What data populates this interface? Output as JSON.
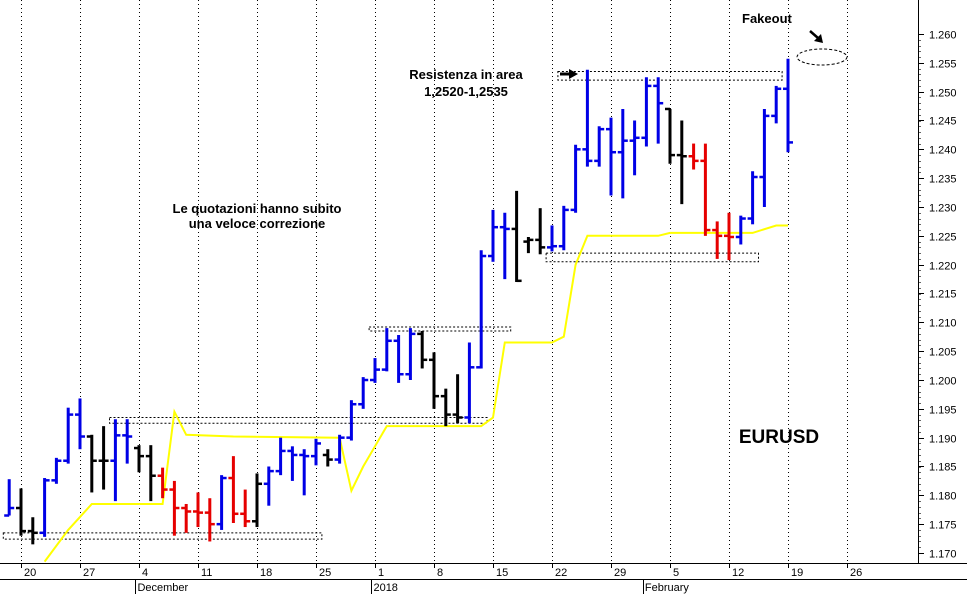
{
  "chart_data": {
    "type": "ohlc",
    "symbol": "EURUSD",
    "y_ticks": [
      "1.260",
      "1.255",
      "1.250",
      "1.245",
      "1.240",
      "1.235",
      "1.230",
      "1.225",
      "1.220",
      "1.215",
      "1.210",
      "1.205",
      "1.200",
      "1.195",
      "1.190",
      "1.185",
      "1.180",
      "1.175",
      "1.170"
    ],
    "ylim": [
      1.1685,
      1.2637
    ],
    "x_day_ticks": [
      {
        "label": "20",
        "i": 0
      },
      {
        "label": "27",
        "i": 5
      },
      {
        "label": "4",
        "i": 10
      },
      {
        "label": "11",
        "i": 15
      },
      {
        "label": "18",
        "i": 20
      },
      {
        "label": "25",
        "i": 25
      },
      {
        "label": "1",
        "i": 30
      },
      {
        "label": "8",
        "i": 35
      },
      {
        "label": "15",
        "i": 40
      },
      {
        "label": "22",
        "i": 45
      },
      {
        "label": "29",
        "i": 50
      },
      {
        "label": "5",
        "i": 55
      },
      {
        "label": "12",
        "i": 60
      },
      {
        "label": "19",
        "i": 65
      },
      {
        "label": "26",
        "i": 70
      }
    ],
    "x_month_labels": [
      {
        "label": "December",
        "i": 9.7
      },
      {
        "label": "2018",
        "i": 29.7
      },
      {
        "label": "February",
        "i": 52.7
      }
    ],
    "bars": [
      {
        "i": -1,
        "o": 1.1765,
        "h": 1.1828,
        "l": 1.1765,
        "c": 1.1778,
        "color": "blue"
      },
      {
        "i": 0,
        "o": 1.1778,
        "h": 1.1812,
        "l": 1.173,
        "c": 1.1738,
        "color": "black"
      },
      {
        "i": 1,
        "o": 1.1738,
        "h": 1.1762,
        "l": 1.1715,
        "c": 1.1735,
        "color": "black"
      },
      {
        "i": 2,
        "o": 1.1735,
        "h": 1.183,
        "l": 1.1728,
        "c": 1.1826,
        "color": "blue"
      },
      {
        "i": 3,
        "o": 1.1826,
        "h": 1.1865,
        "l": 1.182,
        "c": 1.186,
        "color": "blue"
      },
      {
        "i": 4,
        "o": 1.186,
        "h": 1.1952,
        "l": 1.1855,
        "c": 1.194,
        "color": "blue"
      },
      {
        "i": 5,
        "o": 1.194,
        "h": 1.1968,
        "l": 1.188,
        "c": 1.1902,
        "color": "blue"
      },
      {
        "i": 6,
        "o": 1.1902,
        "h": 1.1905,
        "l": 1.1805,
        "c": 1.186,
        "color": "black"
      },
      {
        "i": 7,
        "o": 1.186,
        "h": 1.192,
        "l": 1.181,
        "c": 1.186,
        "color": "black"
      },
      {
        "i": 8,
        "o": 1.186,
        "h": 1.1932,
        "l": 1.179,
        "c": 1.1904,
        "color": "blue"
      },
      {
        "i": 9,
        "o": 1.1904,
        "h": 1.1932,
        "l": 1.1855,
        "c": 1.1902,
        "color": "blue"
      },
      {
        "i": 10,
        "o": 1.1882,
        "h": 1.1887,
        "l": 1.184,
        "c": 1.1868,
        "color": "black"
      },
      {
        "i": 11,
        "o": 1.1868,
        "h": 1.1887,
        "l": 1.179,
        "c": 1.1834,
        "color": "black"
      },
      {
        "i": 12,
        "o": 1.1834,
        "h": 1.1848,
        "l": 1.1795,
        "c": 1.181,
        "color": "red"
      },
      {
        "i": 13,
        "o": 1.181,
        "h": 1.1825,
        "l": 1.173,
        "c": 1.1778,
        "color": "red"
      },
      {
        "i": 14,
        "o": 1.1778,
        "h": 1.1785,
        "l": 1.1735,
        "c": 1.1772,
        "color": "red"
      },
      {
        "i": 15,
        "o": 1.1772,
        "h": 1.1805,
        "l": 1.1745,
        "c": 1.177,
        "color": "red"
      },
      {
        "i": 16,
        "o": 1.177,
        "h": 1.1795,
        "l": 1.172,
        "c": 1.175,
        "color": "red"
      },
      {
        "i": 17,
        "o": 1.175,
        "h": 1.1835,
        "l": 1.174,
        "c": 1.183,
        "color": "blue"
      },
      {
        "i": 18,
        "o": 1.183,
        "h": 1.1868,
        "l": 1.1752,
        "c": 1.1768,
        "color": "red"
      },
      {
        "i": 19,
        "o": 1.1768,
        "h": 1.181,
        "l": 1.1745,
        "c": 1.1755,
        "color": "red"
      },
      {
        "i": 20,
        "o": 1.1755,
        "h": 1.1838,
        "l": 1.1745,
        "c": 1.182,
        "color": "black"
      },
      {
        "i": 21,
        "o": 1.182,
        "h": 1.185,
        "l": 1.1782,
        "c": 1.1842,
        "color": "blue"
      },
      {
        "i": 22,
        "o": 1.1842,
        "h": 1.19,
        "l": 1.1835,
        "c": 1.1877,
        "color": "blue"
      },
      {
        "i": 23,
        "o": 1.1877,
        "h": 1.1885,
        "l": 1.1825,
        "c": 1.187,
        "color": "blue"
      },
      {
        "i": 24,
        "o": 1.187,
        "h": 1.188,
        "l": 1.18,
        "c": 1.1868,
        "color": "blue"
      },
      {
        "i": 25,
        "o": 1.1868,
        "h": 1.1898,
        "l": 1.1852,
        "c": 1.189,
        "color": "blue"
      },
      {
        "i": 26,
        "o": 1.187,
        "h": 1.188,
        "l": 1.185,
        "c": 1.1862,
        "color": "black"
      },
      {
        "i": 27,
        "o": 1.1862,
        "h": 1.1905,
        "l": 1.1855,
        "c": 1.19,
        "color": "blue"
      },
      {
        "i": 28,
        "o": 1.19,
        "h": 1.1965,
        "l": 1.1895,
        "c": 1.1958,
        "color": "blue"
      },
      {
        "i": 29,
        "o": 1.1958,
        "h": 1.2005,
        "l": 1.195,
        "c": 1.2,
        "color": "blue"
      },
      {
        "i": 30,
        "o": 1.2,
        "h": 1.2038,
        "l": 1.1995,
        "c": 1.2018,
        "color": "blue"
      },
      {
        "i": 31,
        "o": 1.2018,
        "h": 1.209,
        "l": 1.2015,
        "c": 1.2068,
        "color": "blue"
      },
      {
        "i": 32,
        "o": 1.2068,
        "h": 1.2078,
        "l": 1.1995,
        "c": 1.201,
        "color": "blue"
      },
      {
        "i": 33,
        "o": 1.201,
        "h": 1.209,
        "l": 1.2,
        "c": 1.208,
        "color": "blue"
      },
      {
        "i": 34,
        "o": 1.208,
        "h": 1.2085,
        "l": 1.202,
        "c": 1.2035,
        "color": "black"
      },
      {
        "i": 35,
        "o": 1.2035,
        "h": 1.2048,
        "l": 1.195,
        "c": 1.1972,
        "color": "black"
      },
      {
        "i": 36,
        "o": 1.1972,
        "h": 1.1985,
        "l": 1.192,
        "c": 1.194,
        "color": "black"
      },
      {
        "i": 37,
        "o": 1.194,
        "h": 1.201,
        "l": 1.1925,
        "c": 1.1935,
        "color": "black"
      },
      {
        "i": 38,
        "o": 1.1935,
        "h": 1.2065,
        "l": 1.1925,
        "c": 1.2022,
        "color": "blue"
      },
      {
        "i": 39,
        "o": 1.2022,
        "h": 1.2225,
        "l": 1.202,
        "c": 1.2215,
        "color": "blue"
      },
      {
        "i": 40,
        "o": 1.2215,
        "h": 1.2295,
        "l": 1.2205,
        "c": 1.2265,
        "color": "blue"
      },
      {
        "i": 41,
        "o": 1.2265,
        "h": 1.229,
        "l": 1.2175,
        "c": 1.2262,
        "color": "blue"
      },
      {
        "i": 42,
        "o": 1.2262,
        "h": 1.2328,
        "l": 1.217,
        "c": 1.2172,
        "color": "black"
      },
      {
        "i": 43,
        "o": 1.224,
        "h": 1.2248,
        "l": 1.222,
        "c": 1.2243,
        "color": "black"
      },
      {
        "i": 44,
        "o": 1.2243,
        "h": 1.2298,
        "l": 1.2218,
        "c": 1.223,
        "color": "black"
      },
      {
        "i": 45,
        "o": 1.223,
        "h": 1.2268,
        "l": 1.2223,
        "c": 1.2232,
        "color": "blue"
      },
      {
        "i": 46,
        "o": 1.2232,
        "h": 1.2302,
        "l": 1.2225,
        "c": 1.2295,
        "color": "blue"
      },
      {
        "i": 47,
        "o": 1.2295,
        "h": 1.2408,
        "l": 1.229,
        "c": 1.24,
        "color": "blue"
      },
      {
        "i": 48,
        "o": 1.24,
        "h": 1.2538,
        "l": 1.237,
        "c": 1.238,
        "color": "blue"
      },
      {
        "i": 49,
        "o": 1.238,
        "h": 1.244,
        "l": 1.237,
        "c": 1.2435,
        "color": "blue"
      },
      {
        "i": 50,
        "o": 1.2435,
        "h": 1.2455,
        "l": 1.232,
        "c": 1.2395,
        "color": "blue"
      },
      {
        "i": 51,
        "o": 1.2395,
        "h": 1.247,
        "l": 1.2315,
        "c": 1.2415,
        "color": "blue"
      },
      {
        "i": 52,
        "o": 1.2415,
        "h": 1.245,
        "l": 1.2355,
        "c": 1.242,
        "color": "blue"
      },
      {
        "i": 53,
        "o": 1.242,
        "h": 1.2525,
        "l": 1.2405,
        "c": 1.251,
        "color": "blue"
      },
      {
        "i": 54,
        "o": 1.251,
        "h": 1.2525,
        "l": 1.241,
        "c": 1.248,
        "color": "blue"
      },
      {
        "i": 55,
        "o": 1.247,
        "h": 1.247,
        "l": 1.2375,
        "c": 1.239,
        "color": "black"
      },
      {
        "i": 56,
        "o": 1.239,
        "h": 1.245,
        "l": 1.2305,
        "c": 1.2388,
        "color": "black"
      },
      {
        "i": 57,
        "o": 1.2388,
        "h": 1.241,
        "l": 1.2365,
        "c": 1.238,
        "color": "red"
      },
      {
        "i": 58,
        "o": 1.238,
        "h": 1.241,
        "l": 1.225,
        "c": 1.226,
        "color": "red"
      },
      {
        "i": 59,
        "o": 1.226,
        "h": 1.2275,
        "l": 1.221,
        "c": 1.225,
        "color": "red"
      },
      {
        "i": 60,
        "o": 1.225,
        "h": 1.229,
        "l": 1.2208,
        "c": 1.2248,
        "color": "red"
      },
      {
        "i": 61,
        "o": 1.2248,
        "h": 1.2285,
        "l": 1.2235,
        "c": 1.228,
        "color": "blue"
      },
      {
        "i": 62,
        "o": 1.228,
        "h": 1.2362,
        "l": 1.227,
        "c": 1.2352,
        "color": "blue"
      },
      {
        "i": 63,
        "o": 1.2352,
        "h": 1.247,
        "l": 1.23,
        "c": 1.2458,
        "color": "blue"
      },
      {
        "i": 64,
        "o": 1.2458,
        "h": 1.251,
        "l": 1.2445,
        "c": 1.2505,
        "color": "blue"
      },
      {
        "i": 65,
        "o": 1.2505,
        "h": 1.2557,
        "l": 1.2395,
        "c": 1.2412,
        "color": "blue"
      }
    ],
    "yellow_line": [
      {
        "i": 2,
        "v": 1.1685
      },
      {
        "i": 4,
        "v": 1.174
      },
      {
        "i": 6,
        "v": 1.1785
      },
      {
        "i": 12,
        "v": 1.1785
      },
      {
        "i": 13,
        "v": 1.1945
      },
      {
        "i": 14,
        "v": 1.1905
      },
      {
        "i": 18,
        "v": 1.1902
      },
      {
        "i": 27,
        "v": 1.19
      },
      {
        "i": 28,
        "v": 1.1808
      },
      {
        "i": 29,
        "v": 1.185
      },
      {
        "i": 31,
        "v": 1.192
      },
      {
        "i": 39,
        "v": 1.192
      },
      {
        "i": 40,
        "v": 1.1935
      },
      {
        "i": 41,
        "v": 1.2065
      },
      {
        "i": 45,
        "v": 1.2065
      },
      {
        "i": 46,
        "v": 1.2075
      },
      {
        "i": 47,
        "v": 1.22
      },
      {
        "i": 48,
        "v": 1.225
      },
      {
        "i": 54,
        "v": 1.225
      },
      {
        "i": 55,
        "v": 1.2255
      },
      {
        "i": 62,
        "v": 1.2255
      },
      {
        "i": 64,
        "v": 1.2268
      },
      {
        "i": 65,
        "v": 1.2268
      }
    ],
    "zones": [
      {
        "i1": -1.5,
        "i2": 25.5,
        "lo": 1.1724,
        "hi": 1.1735
      },
      {
        "i1": 7.5,
        "i2": 39.5,
        "lo": 1.1925,
        "hi": 1.1935
      },
      {
        "i1": 29.5,
        "i2": 41.5,
        "lo": 1.2086,
        "hi": 1.2092
      },
      {
        "i1": 44.5,
        "i2": 62.5,
        "lo": 1.2205,
        "hi": 1.222
      },
      {
        "i1": 45.5,
        "i2": 64.5,
        "lo": 1.252,
        "hi": 1.2535
      }
    ],
    "annotations": {
      "fakeout": "Fakeout",
      "resistance_line1": "Resistenza in area",
      "resistance_line2": "1,2520-1,2535",
      "correction_line1": "Le quotazioni hanno subito",
      "correction_line2": "una veloce correzione"
    },
    "colors": {
      "up": "#0000e6",
      "down_black": "#000000",
      "down_red": "#e60000",
      "ma": "#ffff00",
      "grid": "#000000"
    }
  }
}
